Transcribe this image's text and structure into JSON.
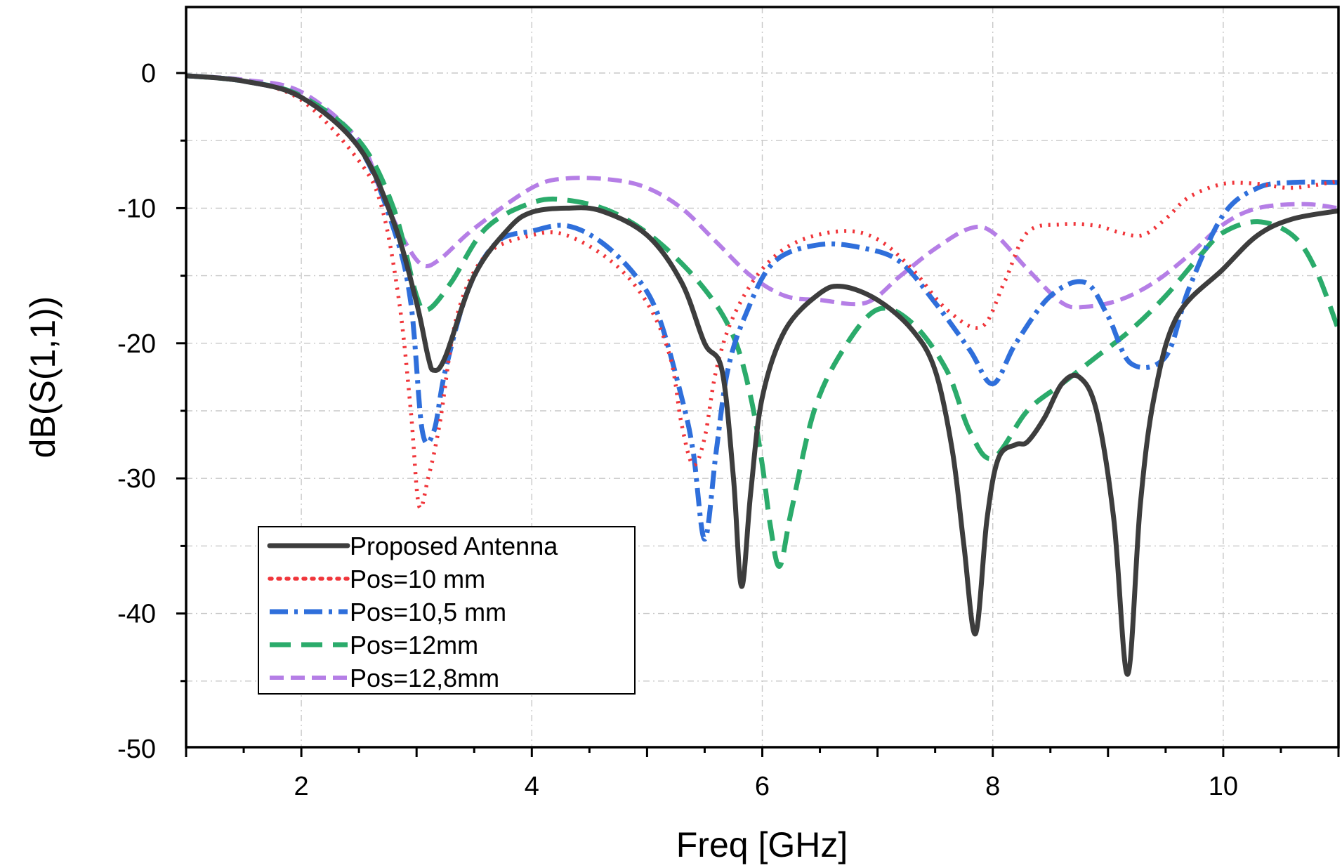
{
  "chart_data": {
    "type": "line",
    "title": "",
    "xlabel": "Freq [GHz]",
    "ylabel": "dB(S(1,1))",
    "xlim": [
      1,
      11
    ],
    "ylim": [
      -50,
      5
    ],
    "x_ticks": [
      2,
      4,
      6,
      8,
      10
    ],
    "x_tick_labels": [
      "2",
      "4",
      "6",
      "8",
      "10"
    ],
    "y_ticks": [
      0,
      -10,
      -20,
      -30,
      -40,
      -50
    ],
    "y_tick_labels": [
      "0",
      "-10",
      "-20",
      "-30",
      "-40",
      "-50"
    ],
    "grid": true,
    "legend_position": "lower-left",
    "series": [
      {
        "name": "Proposed Antenna",
        "color": "#3d3d3d",
        "dash": "solid",
        "points": [
          [
            1,
            -0.2
          ],
          [
            1.5,
            -0.6
          ],
          [
            2,
            -1.8
          ],
          [
            2.5,
            -5.5
          ],
          [
            2.8,
            -11
          ],
          [
            3,
            -17
          ],
          [
            3.1,
            -21
          ],
          [
            3.15,
            -22
          ],
          [
            3.25,
            -21
          ],
          [
            3.5,
            -15
          ],
          [
            3.8,
            -11.5
          ],
          [
            4,
            -10.3
          ],
          [
            4.3,
            -10
          ],
          [
            4.6,
            -10.2
          ],
          [
            5,
            -12
          ],
          [
            5.3,
            -15.5
          ],
          [
            5.5,
            -20
          ],
          [
            5.65,
            -22
          ],
          [
            5.75,
            -30
          ],
          [
            5.82,
            -38
          ],
          [
            5.9,
            -31
          ],
          [
            6,
            -24
          ],
          [
            6.2,
            -19
          ],
          [
            6.5,
            -16.3
          ],
          [
            6.7,
            -15.8
          ],
          [
            7,
            -16.8
          ],
          [
            7.3,
            -19
          ],
          [
            7.5,
            -22
          ],
          [
            7.65,
            -28
          ],
          [
            7.75,
            -35
          ],
          [
            7.85,
            -41.5
          ],
          [
            7.95,
            -33
          ],
          [
            8.05,
            -28.5
          ],
          [
            8.2,
            -27.5
          ],
          [
            8.3,
            -27.3
          ],
          [
            8.45,
            -25.5
          ],
          [
            8.6,
            -23
          ],
          [
            8.75,
            -22.5
          ],
          [
            8.9,
            -25
          ],
          [
            9.05,
            -33
          ],
          [
            9.17,
            -44.5
          ],
          [
            9.28,
            -32
          ],
          [
            9.4,
            -24
          ],
          [
            9.6,
            -18
          ],
          [
            10,
            -14.5
          ],
          [
            10.3,
            -12
          ],
          [
            10.6,
            -10.8
          ],
          [
            11,
            -10.2
          ]
        ]
      },
      {
        "name": "Pos=10 mm",
        "color": "#f0353a",
        "dash": "dotted",
        "points": [
          [
            1,
            -0.2
          ],
          [
            1.5,
            -0.6
          ],
          [
            2,
            -2
          ],
          [
            2.5,
            -6.5
          ],
          [
            2.7,
            -10
          ],
          [
            2.85,
            -17
          ],
          [
            2.95,
            -25
          ],
          [
            3.02,
            -32
          ],
          [
            3.1,
            -30
          ],
          [
            3.2,
            -26
          ],
          [
            3.35,
            -18
          ],
          [
            3.6,
            -13.5
          ],
          [
            4,
            -12
          ],
          [
            4.3,
            -12
          ],
          [
            4.7,
            -14
          ],
          [
            5,
            -17
          ],
          [
            5.2,
            -21
          ],
          [
            5.3,
            -26
          ],
          [
            5.4,
            -29
          ],
          [
            5.5,
            -27
          ],
          [
            5.6,
            -22
          ],
          [
            5.75,
            -18
          ],
          [
            6,
            -14.5
          ],
          [
            6.3,
            -12.5
          ],
          [
            6.7,
            -11.7
          ],
          [
            7,
            -12.3
          ],
          [
            7.3,
            -14.5
          ],
          [
            7.6,
            -17.5
          ],
          [
            7.9,
            -18.8
          ],
          [
            8.1,
            -15.5
          ],
          [
            8.3,
            -11.8
          ],
          [
            8.6,
            -11.2
          ],
          [
            8.9,
            -11.3
          ],
          [
            9.1,
            -11.8
          ],
          [
            9.3,
            -12
          ],
          [
            9.5,
            -10.8
          ],
          [
            9.7,
            -9.2
          ],
          [
            10,
            -8.2
          ],
          [
            10.3,
            -8.2
          ],
          [
            10.6,
            -8.5
          ],
          [
            11,
            -8
          ]
        ]
      },
      {
        "name": "Pos=10,5 mm",
        "color": "#2f6fdb",
        "dash": "dashdot",
        "points": [
          [
            1,
            -0.2
          ],
          [
            1.5,
            -0.6
          ],
          [
            2,
            -1.8
          ],
          [
            2.5,
            -5.5
          ],
          [
            2.8,
            -11.5
          ],
          [
            2.95,
            -17
          ],
          [
            3.05,
            -26.5
          ],
          [
            3.15,
            -26.5
          ],
          [
            3.25,
            -22
          ],
          [
            3.45,
            -16
          ],
          [
            3.7,
            -12.5
          ],
          [
            4,
            -11.7
          ],
          [
            4.3,
            -11.3
          ],
          [
            4.6,
            -12.5
          ],
          [
            4.9,
            -15
          ],
          [
            5.1,
            -18
          ],
          [
            5.3,
            -24
          ],
          [
            5.4,
            -28
          ],
          [
            5.5,
            -34.5
          ],
          [
            5.6,
            -28
          ],
          [
            5.7,
            -22
          ],
          [
            5.85,
            -18
          ],
          [
            6.1,
            -14
          ],
          [
            6.5,
            -12.7
          ],
          [
            6.9,
            -13
          ],
          [
            7.2,
            -14
          ],
          [
            7.5,
            -17
          ],
          [
            7.8,
            -20.5
          ],
          [
            8,
            -23
          ],
          [
            8.2,
            -20
          ],
          [
            8.5,
            -16.5
          ],
          [
            8.8,
            -15.5
          ],
          [
            9,
            -18
          ],
          [
            9.2,
            -21.5
          ],
          [
            9.5,
            -21
          ],
          [
            9.7,
            -16
          ],
          [
            10,
            -10.5
          ],
          [
            10.3,
            -8.5
          ],
          [
            10.6,
            -8.1
          ],
          [
            11,
            -8.1
          ]
        ]
      },
      {
        "name": "Pos=12mm",
        "color": "#2bab6b",
        "dash": "dashed",
        "points": [
          [
            1,
            -0.2
          ],
          [
            1.5,
            -0.6
          ],
          [
            2,
            -1.7
          ],
          [
            2.5,
            -5
          ],
          [
            2.8,
            -10
          ],
          [
            3,
            -16.5
          ],
          [
            3.1,
            -17.5
          ],
          [
            3.3,
            -15.5
          ],
          [
            3.6,
            -11.5
          ],
          [
            4,
            -9.6
          ],
          [
            4.3,
            -9.4
          ],
          [
            4.7,
            -10.3
          ],
          [
            5.1,
            -12.5
          ],
          [
            5.5,
            -16
          ],
          [
            5.75,
            -19.5
          ],
          [
            5.9,
            -24
          ],
          [
            6,
            -29
          ],
          [
            6.07,
            -33.5
          ],
          [
            6.15,
            -36.5
          ],
          [
            6.25,
            -32.5
          ],
          [
            6.45,
            -25
          ],
          [
            6.7,
            -20.5
          ],
          [
            7,
            -17.5
          ],
          [
            7.3,
            -18.5
          ],
          [
            7.6,
            -22
          ],
          [
            7.8,
            -26.5
          ],
          [
            8,
            -28.5
          ],
          [
            8.3,
            -25
          ],
          [
            8.6,
            -23
          ],
          [
            8.9,
            -21
          ],
          [
            9.2,
            -19
          ],
          [
            9.5,
            -16.5
          ],
          [
            9.8,
            -13.5
          ],
          [
            10,
            -11.8
          ],
          [
            10.3,
            -11
          ],
          [
            10.6,
            -12
          ],
          [
            10.8,
            -14.5
          ],
          [
            11,
            -19
          ]
        ]
      },
      {
        "name": "Pos=12,8mm",
        "color": "#b57ee6",
        "dash": "shortdash",
        "points": [
          [
            1,
            -0.2
          ],
          [
            1.5,
            -0.5
          ],
          [
            2,
            -1.4
          ],
          [
            2.5,
            -5
          ],
          [
            2.7,
            -9
          ],
          [
            2.9,
            -12.5
          ],
          [
            3.05,
            -14.2
          ],
          [
            3.2,
            -13.8
          ],
          [
            3.5,
            -11.5
          ],
          [
            4,
            -8.5
          ],
          [
            4.3,
            -7.8
          ],
          [
            4.7,
            -7.9
          ],
          [
            5,
            -8.5
          ],
          [
            5.3,
            -10
          ],
          [
            5.6,
            -12.5
          ],
          [
            5.9,
            -15
          ],
          [
            6.2,
            -16.5
          ],
          [
            6.5,
            -16.8
          ],
          [
            6.9,
            -17
          ],
          [
            7.2,
            -15
          ],
          [
            7.5,
            -13
          ],
          [
            7.8,
            -11.5
          ],
          [
            8,
            -11.8
          ],
          [
            8.3,
            -14.5
          ],
          [
            8.6,
            -17
          ],
          [
            8.8,
            -17.3
          ],
          [
            9.1,
            -16.8
          ],
          [
            9.4,
            -15.5
          ],
          [
            9.7,
            -13.5
          ],
          [
            10,
            -11.2
          ],
          [
            10.3,
            -10
          ],
          [
            10.7,
            -9.7
          ],
          [
            11,
            -10
          ]
        ]
      }
    ]
  }
}
